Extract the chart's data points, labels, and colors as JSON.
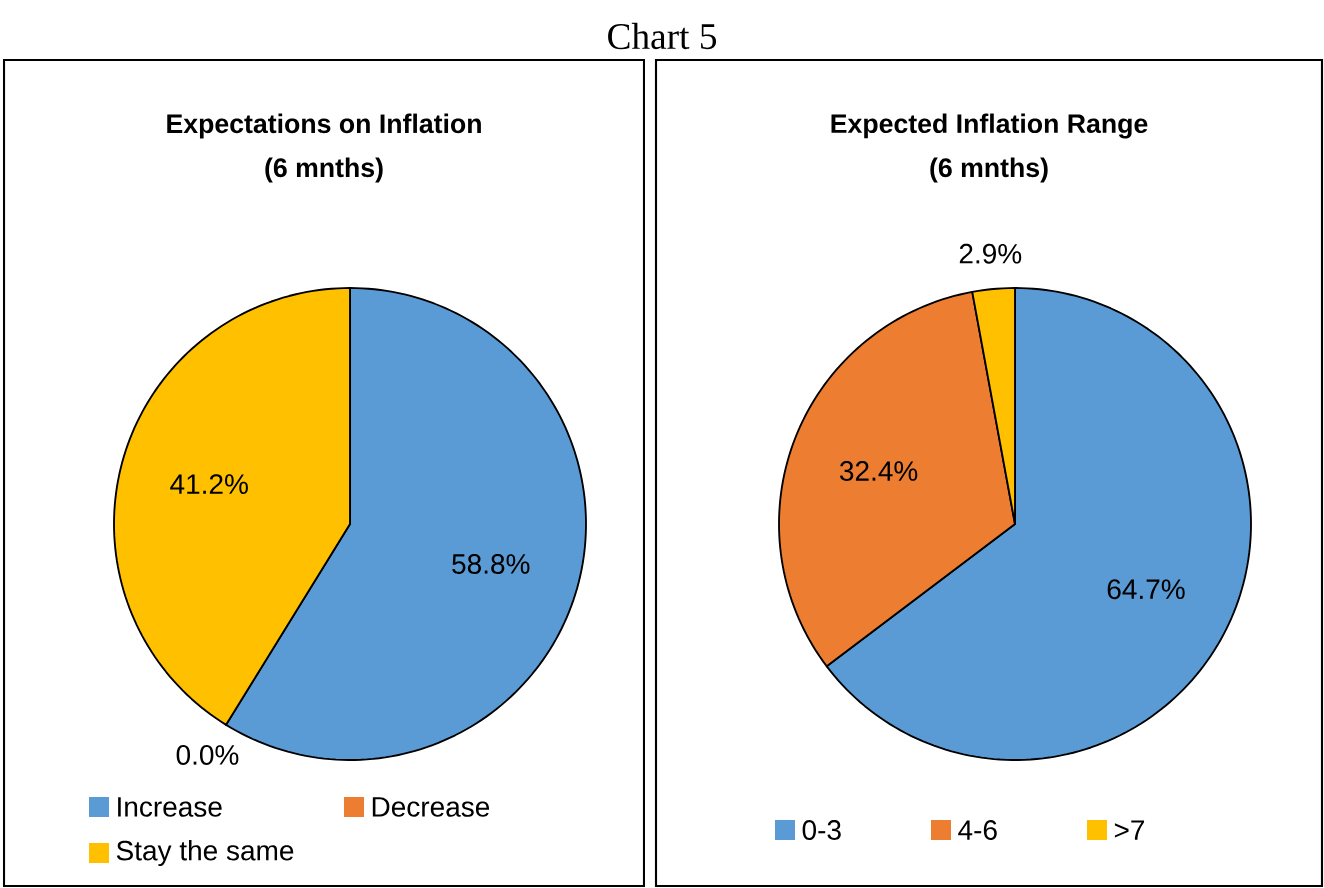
{
  "chart_data": [
    {
      "type": "pie",
      "title": "Expectations on Inflation",
      "subtitle": "(6 mnths)",
      "annotations": [
        "Chart 5"
      ],
      "categories": [
        "Increase",
        "Decrease",
        "Stay the same"
      ],
      "values": [
        58.8,
        0.0,
        41.2
      ],
      "value_labels": [
        "58.8%",
        "0.0%",
        "41.2%"
      ],
      "colors": [
        "#5b9bd5",
        "#ed7d31",
        "#ffc000"
      ],
      "legend": "bottom"
    },
    {
      "type": "pie",
      "title": "Expected Inflation Range",
      "subtitle": "(6 mnths)",
      "categories": [
        "0-3",
        "4-6",
        ">7"
      ],
      "values": [
        64.7,
        32.4,
        2.9
      ],
      "value_labels": [
        "64.7%",
        "32.4%",
        "2.9%"
      ],
      "colors": [
        "#5b9bd5",
        "#ed7d31",
        "#ffc000"
      ],
      "legend": "bottom"
    }
  ]
}
